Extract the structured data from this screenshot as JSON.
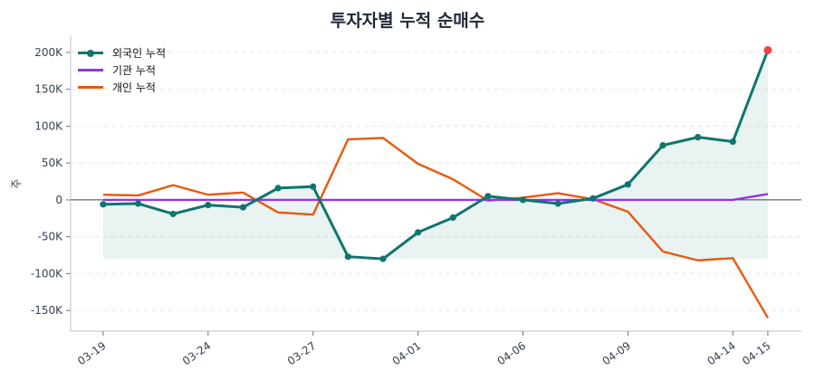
{
  "chart_data": {
    "type": "line",
    "title": "투자자별 누적 순매수",
    "xlabel": "",
    "ylabel": "주",
    "x": [
      "03-19",
      "03-20",
      "03-21",
      "03-24",
      "03-25",
      "03-26",
      "03-27",
      "03-28",
      "03-31",
      "04-01",
      "04-02",
      "04-03",
      "04-06",
      "04-07",
      "04-08",
      "04-09",
      "04-10",
      "04-11",
      "04-14",
      "04-15"
    ],
    "x_tick_labels": [
      "03-19",
      "03-24",
      "03-27",
      "04-01",
      "04-06",
      "04-09",
      "04-14",
      "04-15"
    ],
    "x_tick_indices": [
      0,
      3,
      6,
      9,
      12,
      15,
      18,
      19
    ],
    "ylim": [
      -178000,
      222000
    ],
    "y_ticks": [
      -150000,
      -100000,
      -50000,
      0,
      50000,
      100000,
      150000,
      200000
    ],
    "y_tick_labels": [
      "-150K",
      "-100K",
      "-50K",
      "0",
      "50K",
      "100K",
      "150K",
      "200K"
    ],
    "grid": "horizontal dashed",
    "legend_position": "top-left",
    "series": [
      {
        "name": "외국인 누적",
        "color": "#0f766e",
        "markers": true,
        "fill": true,
        "last_point_color": "#ef4444",
        "values": [
          -6000,
          -5000,
          -19000,
          -7000,
          -10000,
          16000,
          18000,
          -77000,
          -80000,
          -44000,
          -24000,
          5000,
          0,
          -5000,
          2000,
          21000,
          74000,
          85000,
          79000,
          203000
        ]
      },
      {
        "name": "기관 누적",
        "color": "#9333ea",
        "markers": false,
        "values": [
          0,
          0,
          0,
          0,
          0,
          0,
          0,
          0,
          0,
          0,
          0,
          0,
          0,
          0,
          0,
          0,
          0,
          0,
          0,
          8000
        ]
      },
      {
        "name": "개인 누적",
        "color": "#ea580c",
        "markers": false,
        "values": [
          7000,
          6000,
          20000,
          7000,
          10000,
          -17000,
          -20000,
          82000,
          84000,
          49000,
          28000,
          -1000,
          3000,
          9000,
          1000,
          -16000,
          -70000,
          -82000,
          -79000,
          -160000
        ]
      }
    ]
  }
}
